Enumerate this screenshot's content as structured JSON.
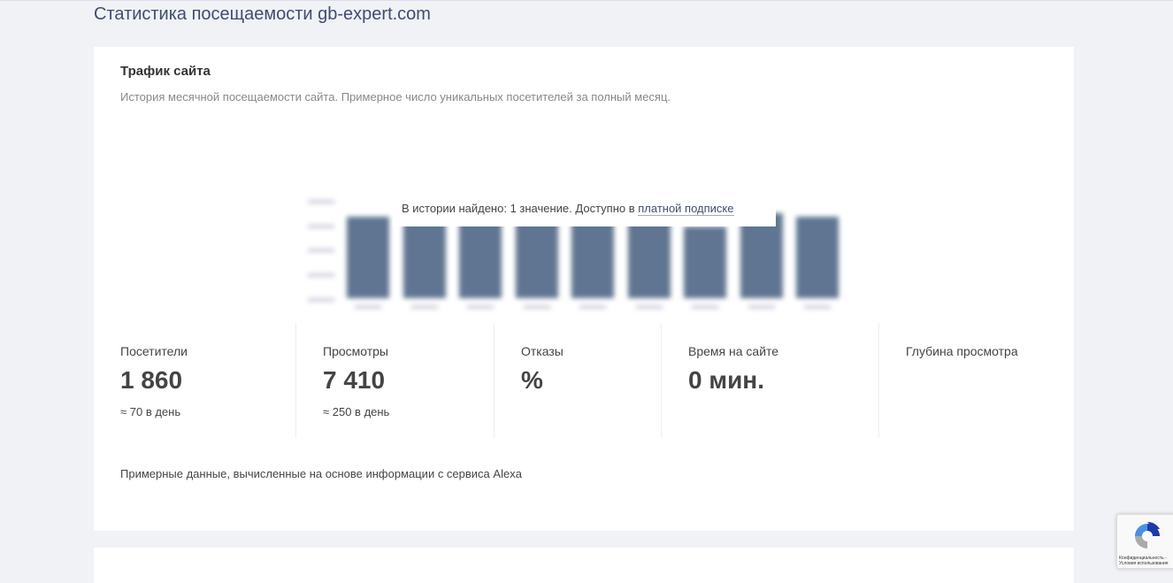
{
  "page_title": "Статистика посещаемости gb-expert.com",
  "traffic": {
    "heading": "Трафик сайта",
    "description": "История месячной посещаемости сайта. Примерное число уникальных посетителей за полный месяц.",
    "notice_text": "В истории найдено: 1 значение. Доступно в ",
    "notice_link": "платной подписке",
    "bar_color": "#5f7591"
  },
  "stats": [
    {
      "label": "Посетители",
      "value": "1 860",
      "sub": "≈ 70 в день"
    },
    {
      "label": "Просмотры",
      "value": "7 410",
      "sub": "≈ 250 в день"
    },
    {
      "label": "Отказы",
      "value": "%",
      "sub": ""
    },
    {
      "label": "Время на сайте",
      "value": "0 мин.",
      "sub": ""
    },
    {
      "label": "Глубина просмотра",
      "value": "",
      "sub": ""
    }
  ],
  "footnote": "Примерные данные, вычисленные на основе информации с сервиса Alexa",
  "recaptcha": {
    "line1": "Конфиденциальность -",
    "line2": "Условия использования"
  }
}
